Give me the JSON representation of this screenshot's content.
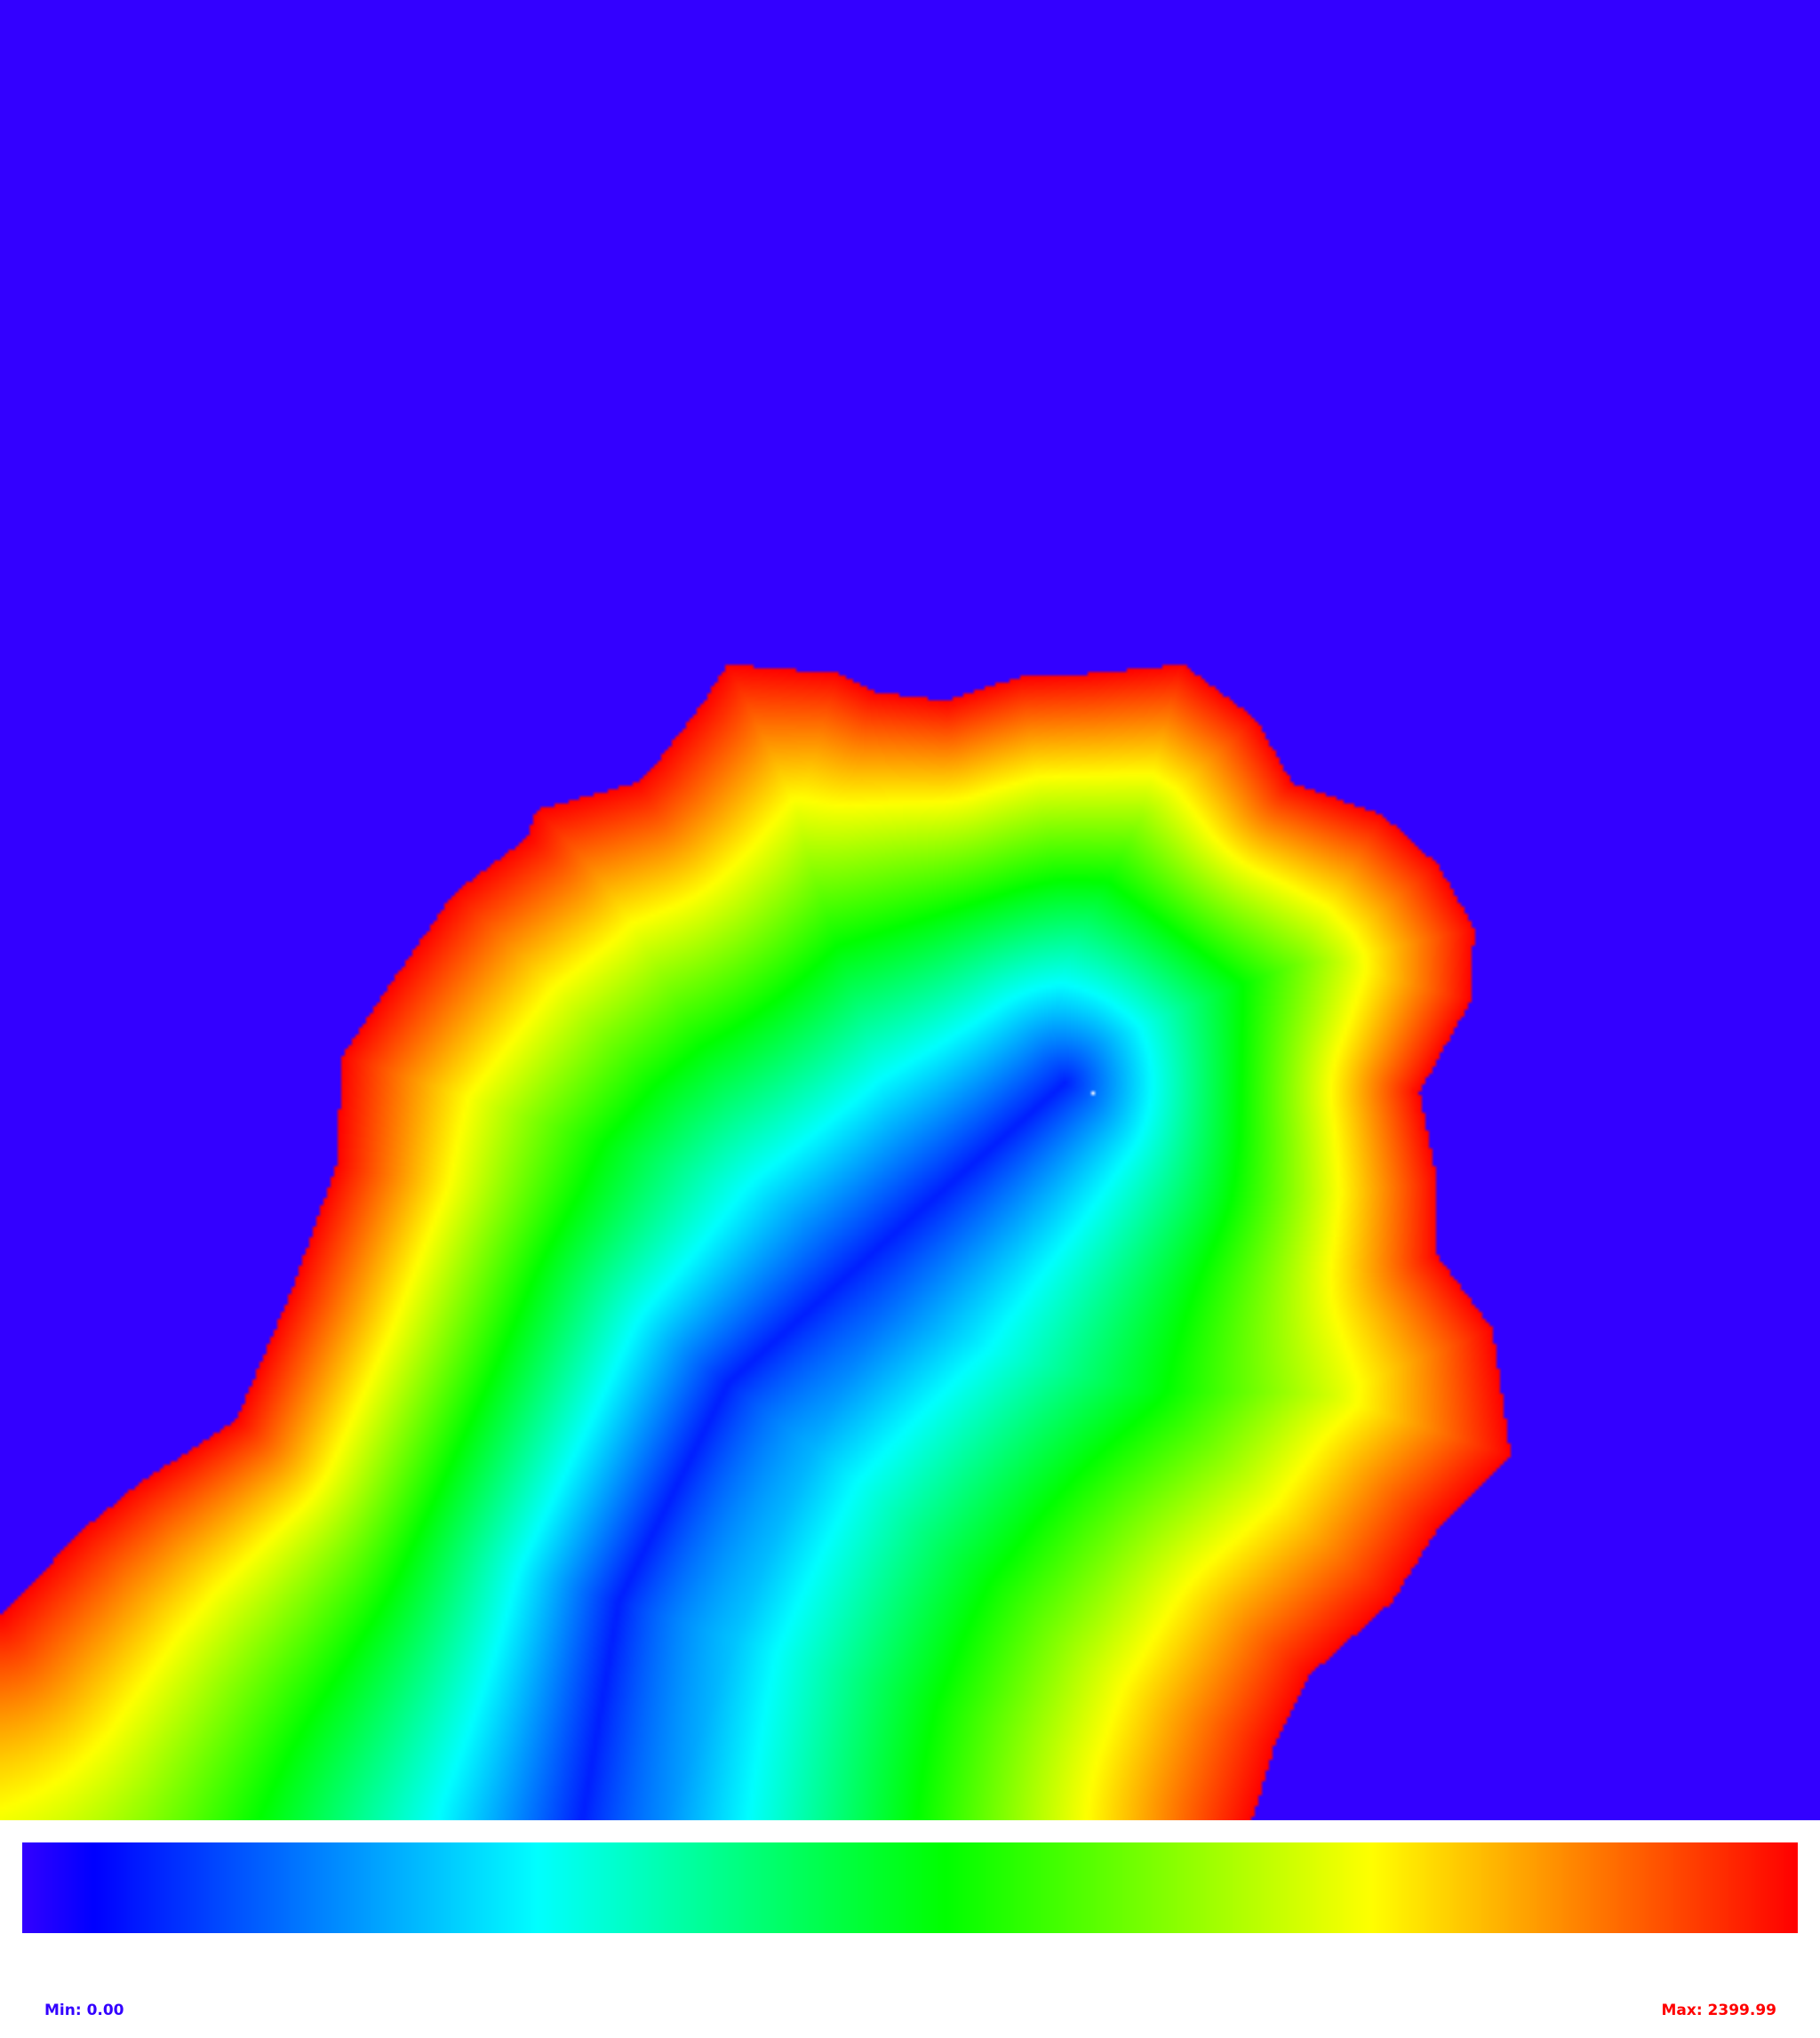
{
  "chart_data": {
    "type": "heatmap",
    "title": "",
    "xlabel": "",
    "ylabel": "",
    "grid": false,
    "legend": "horizontal colorbar below heatmap",
    "value_range": [
      0.0,
      2399.99
    ],
    "background_value": 0.0,
    "colormap": [
      "#3300ff",
      "#0000ff",
      "#00ffff",
      "#00ff00",
      "#ffff00",
      "#ff0000"
    ],
    "colormap_stops": [
      0.0,
      0.04,
      0.29,
      0.52,
      0.76,
      1.0
    ],
    "minimum_marker": "white-dot",
    "min_label": "Min: 0.00",
    "max_label": "Max: 2399.99",
    "min_label_color": "#3300ff",
    "max_label_color": "#ff0000"
  }
}
